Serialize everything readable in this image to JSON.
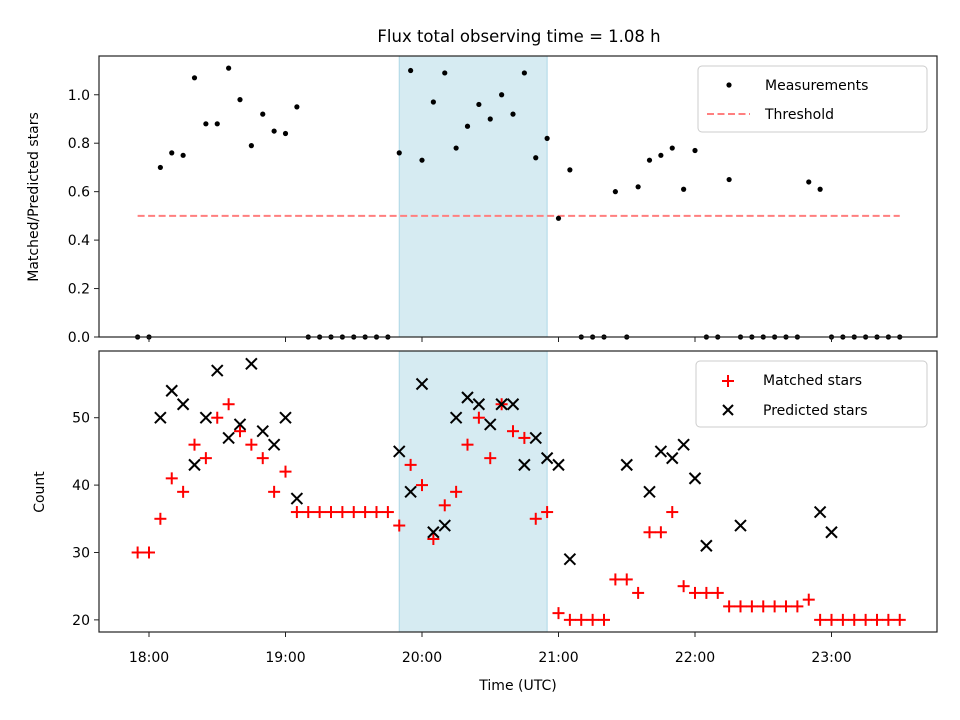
{
  "chart_data": [
    {
      "type": "scatter",
      "title": "Flux total observing time = 1.08 h",
      "xlabel": "",
      "ylabel": "Matched/Predicted stars",
      "ylim": [
        0,
        1.16
      ],
      "yticks": [
        0.0,
        0.2,
        0.4,
        0.6,
        0.8,
        1.0
      ],
      "ytick_labels": [
        "0.0",
        "0.2",
        "0.4",
        "0.6",
        "0.8",
        "1.0"
      ],
      "xlim_minutes_from_1800": [
        -15,
        225
      ],
      "legend": {
        "placement": "top-right",
        "entries": [
          {
            "label": "Measurements",
            "marker": "dot",
            "color": "#000000"
          },
          {
            "label": "Threshold",
            "marker": "dashed-line",
            "color": "#ff7f7f"
          }
        ]
      },
      "threshold": {
        "value": 0.5,
        "x_start": "17:55",
        "x_end": "23:30",
        "color": "#ff7f7f"
      },
      "shaded_interval": {
        "start": "19:50",
        "end": "20:55",
        "color": "#add8e6"
      },
      "series": [
        {
          "name": "Measurements",
          "color": "#000000",
          "x": [
            "17:55",
            "18:00",
            "18:05",
            "18:10",
            "18:15",
            "18:20",
            "18:25",
            "18:30",
            "18:35",
            "18:40",
            "18:45",
            "18:50",
            "18:55",
            "19:00",
            "19:05",
            "19:10",
            "19:15",
            "19:20",
            "19:25",
            "19:30",
            "19:35",
            "19:40",
            "19:45",
            "19:50",
            "19:55",
            "20:00",
            "20:05",
            "20:10",
            "20:15",
            "20:20",
            "20:25",
            "20:30",
            "20:35",
            "20:40",
            "20:45",
            "20:50",
            "20:55",
            "21:00",
            "21:05",
            "21:10",
            "21:15",
            "21:20",
            "21:25",
            "21:30",
            "21:35",
            "21:40",
            "21:45",
            "21:50",
            "21:55",
            "22:00",
            "22:05",
            "22:10",
            "22:15",
            "22:20",
            "22:25",
            "22:30",
            "22:35",
            "22:40",
            "22:45",
            "22:50",
            "22:55",
            "23:00",
            "23:05",
            "23:10",
            "23:15",
            "23:20",
            "23:25",
            "23:30"
          ],
          "y": [
            0,
            0,
            0.7,
            0.76,
            0.75,
            1.07,
            0.88,
            0.88,
            1.11,
            0.98,
            0.79,
            0.92,
            0.85,
            0.84,
            0.95,
            0,
            0,
            0,
            0,
            0,
            0,
            0,
            0,
            0.76,
            1.1,
            0.73,
            0.97,
            1.09,
            0.78,
            0.87,
            0.96,
            0.9,
            1.0,
            0.92,
            1.09,
            0.74,
            0.82,
            0.49,
            0.69,
            0,
            0,
            0,
            0.6,
            0,
            0.62,
            0.73,
            0.75,
            0.78,
            0.61,
            0.77,
            0,
            0,
            0.65,
            0,
            0,
            0,
            0,
            0,
            0,
            0.64,
            0.61,
            0,
            0,
            0,
            0,
            0,
            0,
            0
          ]
        }
      ]
    },
    {
      "type": "scatter",
      "title": "",
      "xlabel": "Time (UTC)",
      "ylabel": "Count",
      "ylim": [
        18.2,
        59.9
      ],
      "yticks": [
        20,
        30,
        40,
        50
      ],
      "ytick_labels": [
        "20",
        "30",
        "40",
        "50"
      ],
      "xticks": [
        "18:00",
        "19:00",
        "20:00",
        "21:00",
        "22:00",
        "23:00"
      ],
      "xtick_labels": [
        "18:00",
        "19:00",
        "20:00",
        "21:00",
        "22:00",
        "23:00"
      ],
      "legend": {
        "placement": "top-right",
        "entries": [
          {
            "label": "Matched stars",
            "marker": "+",
            "color": "#ff0000"
          },
          {
            "label": "Predicted stars",
            "marker": "x",
            "color": "#000000"
          }
        ]
      },
      "shaded_interval": {
        "start": "19:50",
        "end": "20:55",
        "color": "#add8e6"
      },
      "series": [
        {
          "name": "Matched stars",
          "marker": "+",
          "color": "#ff0000",
          "x": [
            "17:55",
            "18:00",
            "18:05",
            "18:10",
            "18:15",
            "18:20",
            "18:25",
            "18:30",
            "18:35",
            "18:40",
            "18:45",
            "18:50",
            "18:55",
            "19:00",
            "19:05",
            "19:10",
            "19:15",
            "19:20",
            "19:25",
            "19:30",
            "19:35",
            "19:40",
            "19:45",
            "19:50",
            "19:55",
            "20:00",
            "20:05",
            "20:10",
            "20:15",
            "20:20",
            "20:25",
            "20:30",
            "20:35",
            "20:40",
            "20:45",
            "20:50",
            "20:55",
            "21:00",
            "21:05",
            "21:10",
            "21:15",
            "21:20",
            "21:25",
            "21:30",
            "21:35",
            "21:40",
            "21:45",
            "21:50",
            "21:55",
            "22:00",
            "22:05",
            "22:10",
            "22:15",
            "22:20",
            "22:25",
            "22:30",
            "22:35",
            "22:40",
            "22:45",
            "22:50",
            "22:55",
            "23:00",
            "23:05",
            "23:10",
            "23:15",
            "23:20",
            "23:25",
            "23:30"
          ],
          "y": [
            30,
            30,
            35,
            41,
            39,
            46,
            44,
            50,
            52,
            48,
            46,
            44,
            39,
            42,
            36,
            36,
            36,
            36,
            36,
            36,
            36,
            36,
            36,
            34,
            43,
            40,
            32,
            37,
            39,
            46,
            50,
            44,
            52,
            48,
            47,
            35,
            36,
            21,
            20,
            20,
            20,
            20,
            26,
            26,
            24,
            33,
            33,
            36,
            25,
            24,
            24,
            24,
            22,
            22,
            22,
            22,
            22,
            22,
            22,
            23,
            20,
            20,
            20,
            20,
            20,
            20,
            20,
            20
          ]
        },
        {
          "name": "Predicted stars",
          "marker": "x",
          "color": "#000000",
          "x": [
            "18:05",
            "18:10",
            "18:15",
            "18:20",
            "18:25",
            "18:30",
            "18:35",
            "18:40",
            "18:45",
            "18:50",
            "18:55",
            "19:00",
            "19:05",
            "19:50",
            "19:55",
            "20:00",
            "20:05",
            "20:10",
            "20:15",
            "20:20",
            "20:25",
            "20:30",
            "20:35",
            "20:40",
            "20:45",
            "20:50",
            "20:55",
            "21:00",
            "21:05",
            "21:30",
            "21:40",
            "21:45",
            "21:50",
            "21:55",
            "22:00",
            "22:05",
            "22:20",
            "22:55",
            "23:00"
          ],
          "y": [
            50,
            54,
            52,
            43,
            50,
            57,
            47,
            49,
            58,
            48,
            46,
            50,
            38,
            45,
            39,
            55,
            33,
            34,
            50,
            53,
            52,
            49,
            52,
            52,
            43,
            47,
            44,
            43,
            29,
            43,
            39,
            45,
            44,
            46,
            41,
            31,
            34,
            36,
            33
          ]
        }
      ]
    }
  ]
}
